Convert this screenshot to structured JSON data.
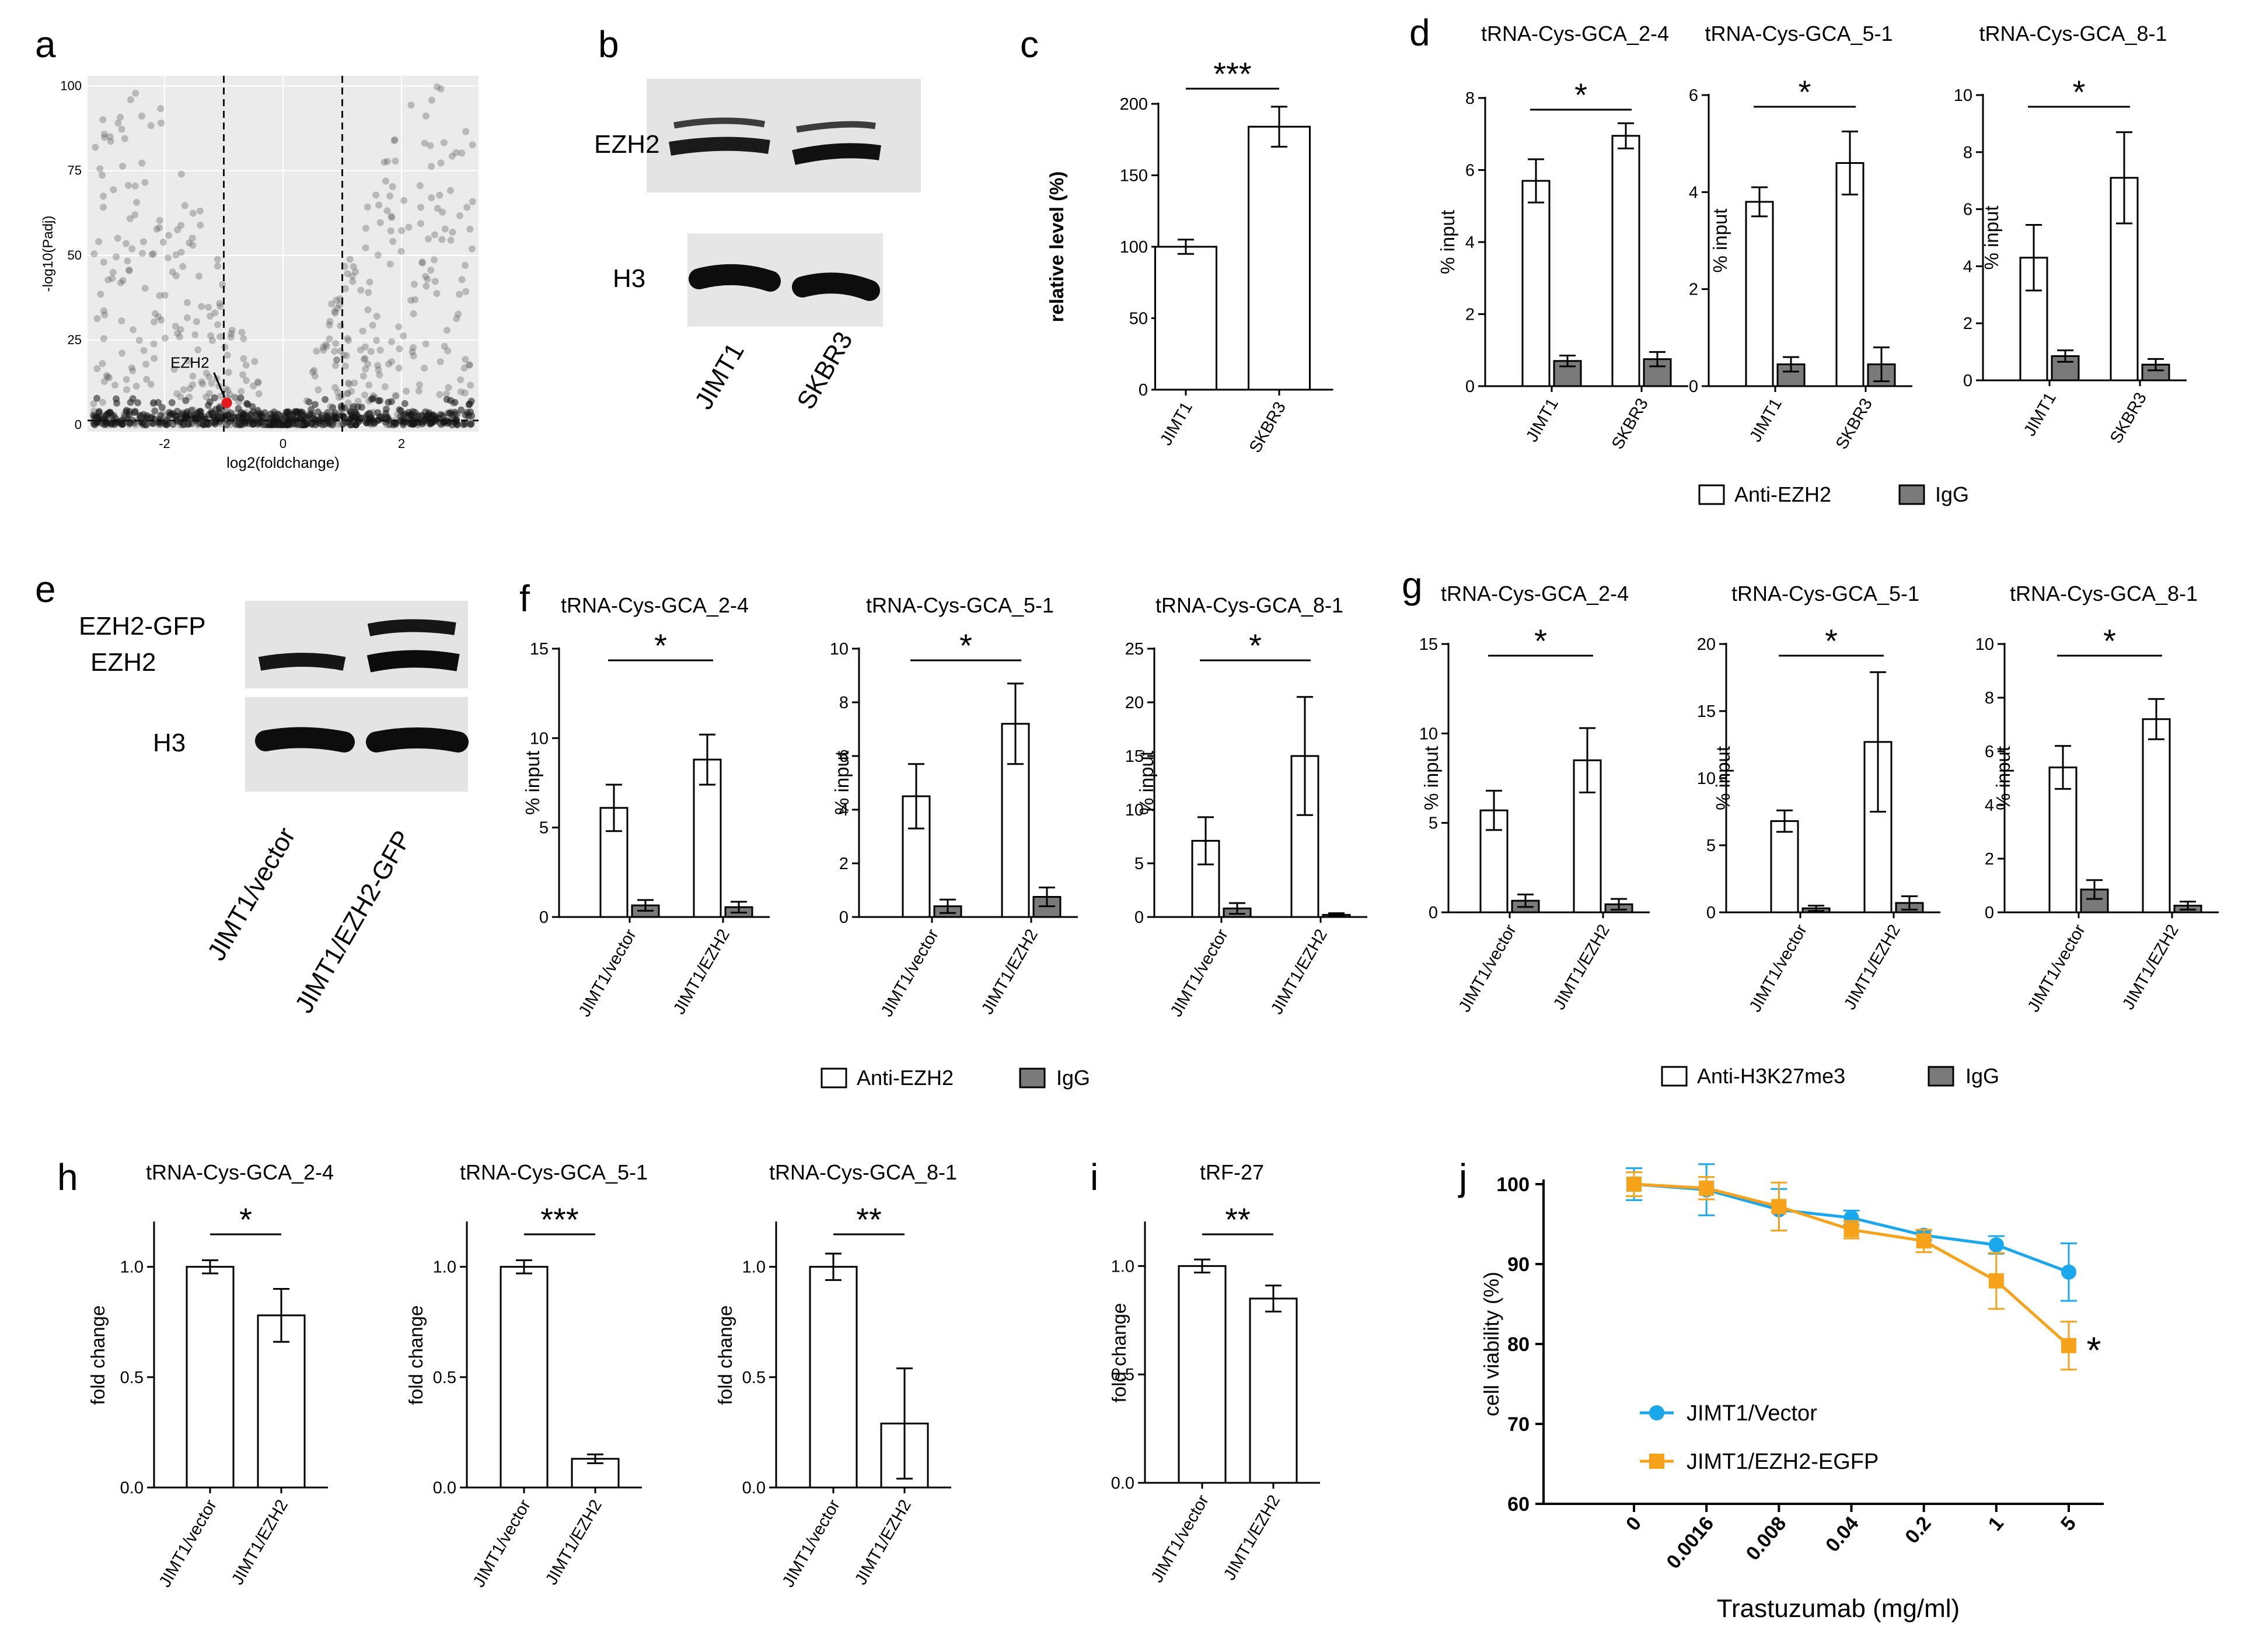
{
  "panels": {
    "a": {
      "label": "a"
    },
    "b": {
      "label": "b",
      "bands": [
        "EZH2",
        "H3"
      ],
      "lanes": [
        "JIMT1",
        "SKBR3"
      ]
    },
    "c": {
      "label": "c"
    },
    "d": {
      "label": "d"
    },
    "e": {
      "label": "e",
      "bands": [
        "EZH2-GFP",
        "EZH2",
        "H3"
      ],
      "lanes": [
        "JIMT1/vector",
        "JIMT1/EZH2-GFP"
      ]
    },
    "f": {
      "label": "f"
    },
    "g": {
      "label": "g"
    },
    "h": {
      "label": "h"
    },
    "i": {
      "label": "i"
    },
    "j": {
      "label": "j"
    }
  },
  "legends": {
    "anti_ezh2": "Anti-EZH2",
    "igg": "IgG",
    "anti_h3k27me3": "Anti-H3K27me3"
  },
  "chart_data": [
    {
      "id": "a",
      "type": "scatter",
      "title": "",
      "xlabel": "log2(foldchange)",
      "ylabel": "-log10(Padj)",
      "xlim": [
        -3.3,
        3.3
      ],
      "ylim": [
        -2,
        103
      ],
      "xticks": [
        -2,
        0,
        2
      ],
      "yticks": [
        0,
        25,
        50,
        75,
        100
      ],
      "thresholds": {
        "x": [
          -1,
          1
        ],
        "y": 1.3
      },
      "annotation": {
        "label": "EZH2",
        "x": -0.95,
        "y": 6.5
      }
    },
    {
      "id": "c",
      "type": "bar",
      "title": "",
      "categories": [
        "JIMT1",
        "SKBR3"
      ],
      "values": [
        100,
        184
      ],
      "errors": [
        5,
        14
      ],
      "ylabel": "relative level (%)",
      "ylim": [
        0,
        200
      ],
      "yticks": [
        0,
        50,
        100,
        150,
        200
      ],
      "significance": "***"
    },
    {
      "id": "d1",
      "type": "bar",
      "title": "tRNA-Cys-GCA_2-4",
      "categories": [
        "JIMT1",
        "SKBR3"
      ],
      "series": [
        {
          "name": "Anti-EZH2",
          "values": [
            5.7,
            6.95
          ],
          "errors": [
            0.6,
            0.35
          ]
        },
        {
          "name": "IgG",
          "values": [
            0.7,
            0.75
          ],
          "errors": [
            0.15,
            0.2
          ]
        }
      ],
      "ylabel": "% input",
      "ylim": [
        0,
        8
      ],
      "yticks": [
        0,
        2,
        4,
        6,
        8
      ],
      "significance": "*"
    },
    {
      "id": "d2",
      "type": "bar",
      "title": "tRNA-Cys-GCA_5-1",
      "categories": [
        "JIMT1",
        "SKBR3"
      ],
      "series": [
        {
          "name": "Anti-EZH2",
          "values": [
            3.8,
            4.6
          ],
          "errors": [
            0.3,
            0.65
          ]
        },
        {
          "name": "IgG",
          "values": [
            0.45,
            0.45
          ],
          "errors": [
            0.15,
            0.35
          ]
        }
      ],
      "ylabel": "% input",
      "ylim": [
        0,
        6
      ],
      "yticks": [
        0,
        2,
        4,
        6
      ],
      "significance": "*"
    },
    {
      "id": "d3",
      "type": "bar",
      "title": "tRNA-Cys-GCA_8-1",
      "categories": [
        "JIMT1",
        "SKBR3"
      ],
      "series": [
        {
          "name": "Anti-EZH2",
          "values": [
            4.3,
            7.1
          ],
          "errors": [
            1.15,
            1.6
          ]
        },
        {
          "name": "IgG",
          "values": [
            0.85,
            0.55
          ],
          "errors": [
            0.2,
            0.2
          ]
        }
      ],
      "ylabel": "% input",
      "ylim": [
        0,
        10
      ],
      "yticks": [
        0,
        2,
        4,
        6,
        8,
        10
      ],
      "significance": "*"
    },
    {
      "id": "f1",
      "type": "bar",
      "title": "tRNA-Cys-GCA_2-4",
      "categories": [
        "JIMT1/vector",
        "JIMT1/EZH2"
      ],
      "series": [
        {
          "name": "Anti-EZH2",
          "values": [
            6.1,
            8.8
          ],
          "errors": [
            1.3,
            1.4
          ]
        },
        {
          "name": "IgG",
          "values": [
            0.65,
            0.55
          ],
          "errors": [
            0.3,
            0.3
          ]
        }
      ],
      "ylabel": "% input",
      "ylim": [
        0,
        15
      ],
      "yticks": [
        0,
        5,
        10,
        15
      ],
      "significance": "*"
    },
    {
      "id": "f2",
      "type": "bar",
      "title": "tRNA-Cys-GCA_5-1",
      "categories": [
        "JIMT1/vector",
        "JIMT1/EZH2"
      ],
      "series": [
        {
          "name": "Anti-EZH2",
          "values": [
            4.5,
            7.2
          ],
          "errors": [
            1.2,
            1.5
          ]
        },
        {
          "name": "IgG",
          "values": [
            0.4,
            0.75
          ],
          "errors": [
            0.25,
            0.35
          ]
        }
      ],
      "ylabel": "% input",
      "ylim": [
        0,
        10
      ],
      "yticks": [
        0,
        2,
        4,
        6,
        8,
        10
      ],
      "significance": "*"
    },
    {
      "id": "f3",
      "type": "bar",
      "title": "tRNA-Cys-GCA_8-1",
      "categories": [
        "JIMT1/vector",
        "JIMT1/EZH2"
      ],
      "series": [
        {
          "name": "Anti-EZH2",
          "values": [
            7.1,
            15.0
          ],
          "errors": [
            2.2,
            5.5
          ]
        },
        {
          "name": "IgG",
          "values": [
            0.8,
            0.2
          ],
          "errors": [
            0.5,
            0.15
          ]
        }
      ],
      "ylabel": "% input",
      "ylim": [
        0,
        25
      ],
      "yticks": [
        0,
        5,
        10,
        15,
        20,
        25
      ],
      "significance": "*"
    },
    {
      "id": "g1",
      "type": "bar",
      "title": "tRNA-Cys-GCA_2-4",
      "categories": [
        "JIMT1/vector",
        "JIMT1/EZH2"
      ],
      "series": [
        {
          "name": "Anti-H3K27me3",
          "values": [
            5.7,
            8.5
          ],
          "errors": [
            1.1,
            1.8
          ]
        },
        {
          "name": "IgG",
          "values": [
            0.65,
            0.45
          ],
          "errors": [
            0.35,
            0.3
          ]
        }
      ],
      "ylabel": "% input",
      "ylim": [
        0,
        15
      ],
      "yticks": [
        0,
        5,
        10,
        15
      ],
      "significance": "*"
    },
    {
      "id": "g2",
      "type": "bar",
      "title": "tRNA-Cys-GCA_5-1",
      "categories": [
        "JIMT1/vector",
        "JIMT1/EZH2"
      ],
      "series": [
        {
          "name": "Anti-H3K27me3",
          "values": [
            6.8,
            12.7
          ],
          "errors": [
            0.8,
            5.2
          ]
        },
        {
          "name": "IgG",
          "values": [
            0.3,
            0.7
          ],
          "errors": [
            0.2,
            0.5
          ]
        }
      ],
      "ylabel": "% input",
      "ylim": [
        0,
        20
      ],
      "yticks": [
        0,
        5,
        10,
        15,
        20
      ],
      "significance": "*"
    },
    {
      "id": "g3",
      "type": "bar",
      "title": "tRNA-Cys-GCA_8-1",
      "categories": [
        "JIMT1/vector",
        "JIMT1/EZH2"
      ],
      "series": [
        {
          "name": "Anti-H3K27me3",
          "values": [
            5.4,
            7.2
          ],
          "errors": [
            0.8,
            0.75
          ]
        },
        {
          "name": "IgG",
          "values": [
            0.85,
            0.25
          ],
          "errors": [
            0.35,
            0.15
          ]
        }
      ],
      "ylabel": "% input",
      "ylim": [
        0,
        10
      ],
      "yticks": [
        0,
        2,
        4,
        6,
        8,
        10
      ],
      "significance": "*"
    },
    {
      "id": "h1",
      "type": "bar",
      "title": "tRNA-Cys-GCA_2-4",
      "categories": [
        "JIMT1/vector",
        "JIMT1/EZH2"
      ],
      "values": [
        1.0,
        0.78
      ],
      "errors": [
        0.03,
        0.12
      ],
      "ylabel": "fold change",
      "ylim": [
        0,
        1.2
      ],
      "yticks": [
        "0.0",
        "0.5",
        "1.0"
      ],
      "significance": "*"
    },
    {
      "id": "h2",
      "type": "bar",
      "title": "tRNA-Cys-GCA_5-1",
      "categories": [
        "JIMT1/vector",
        "JIMT1/EZH2"
      ],
      "values": [
        1.0,
        0.13
      ],
      "errors": [
        0.03,
        0.02
      ],
      "ylabel": "fold change",
      "ylim": [
        0,
        1.2
      ],
      "yticks": [
        "0.0",
        "0.5",
        "1.0"
      ],
      "significance": "***"
    },
    {
      "id": "h3",
      "type": "bar",
      "title": "tRNA-Cys-GCA_8-1",
      "categories": [
        "JIMT1/vector",
        "JIMT1/EZH2"
      ],
      "values": [
        1.0,
        0.29
      ],
      "errors": [
        0.06,
        0.25
      ],
      "ylabel": "fold change",
      "ylim": [
        0,
        1.2
      ],
      "yticks": [
        "0.0",
        "0.5",
        "1.0"
      ],
      "significance": "**"
    },
    {
      "id": "i",
      "type": "bar",
      "title": "tRF-27",
      "categories": [
        "JIMT1/vector",
        "JIMT1/EZH2"
      ],
      "values": [
        1.0,
        0.85
      ],
      "errors": [
        0.03,
        0.06
      ],
      "ylabel": "fold change",
      "ylim": [
        0,
        1.2
      ],
      "yticks": [
        "0.0",
        "0.5",
        "1.0"
      ],
      "significance": "**"
    },
    {
      "id": "j",
      "type": "line",
      "title": "",
      "xlabel": "Trastuzumab (mg/ml)",
      "ylabel": "cell viability (%)",
      "categories": [
        "0",
        "0.0016",
        "0.008",
        "0.04",
        "0.2",
        "1",
        "5"
      ],
      "series": [
        {
          "name": "JIMT1/Vector",
          "color": "#1aa7ec",
          "values": [
            100,
            99.3,
            96.8,
            95.8,
            93.6,
            92.4,
            89
          ],
          "errors": [
            2,
            3.2,
            2.6,
            0.9,
            0.6,
            1.1,
            3.6
          ]
        },
        {
          "name": "JIMT1/EZH2-EGFP",
          "color": "#f7a21b",
          "values": [
            100,
            99.5,
            97.2,
            94.3,
            92.9,
            87.9,
            79.8
          ],
          "errors": [
            1.5,
            1.4,
            3,
            1.1,
            1.4,
            3.5,
            3
          ]
        }
      ],
      "ylim": [
        60,
        100
      ],
      "yticks": [
        60,
        70,
        80,
        90,
        100
      ],
      "significance": "*"
    }
  ]
}
